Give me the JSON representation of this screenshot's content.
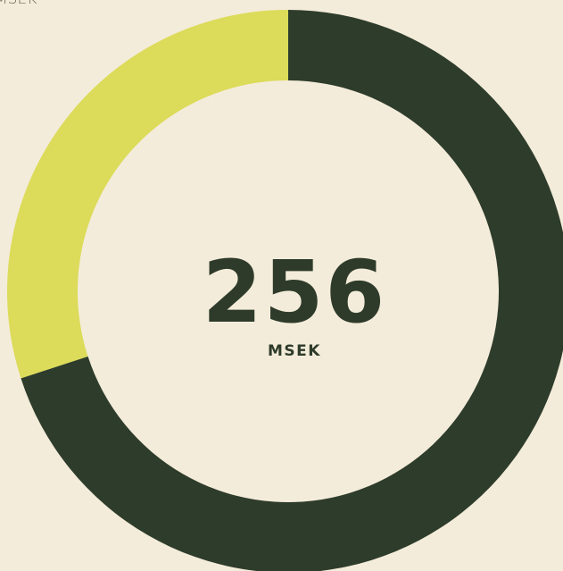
{
  "chart_data": {
    "type": "donut",
    "corner_label": "MSEK",
    "center_value": "256",
    "center_label": "MSEK",
    "values": [
      70,
      30
    ],
    "colors": [
      "#2e3c2b",
      "#dcdb5a"
    ]
  }
}
